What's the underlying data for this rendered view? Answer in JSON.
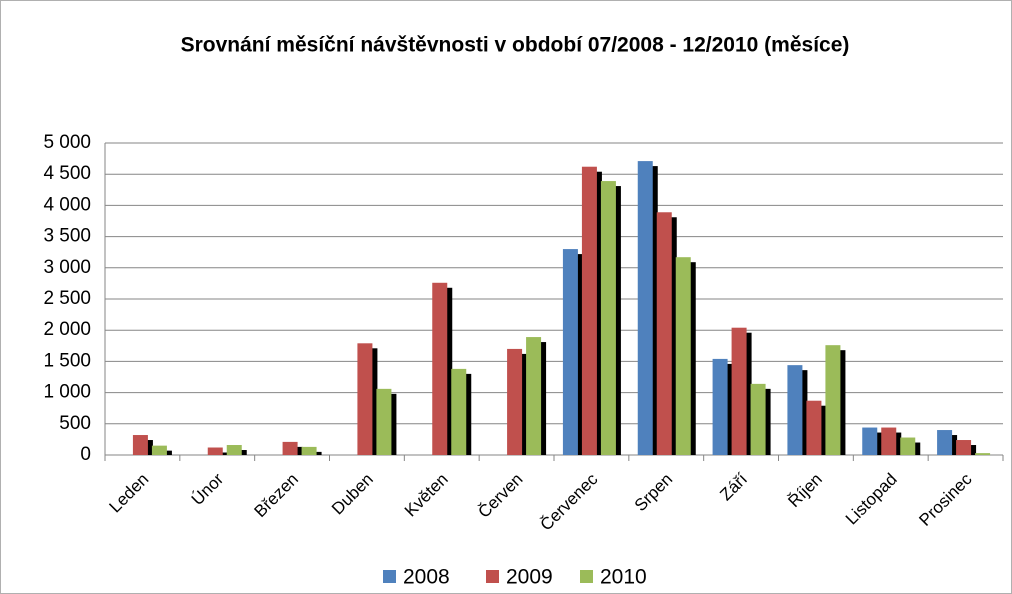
{
  "chart_data": {
    "type": "bar",
    "title": "Srovnání měsíční návštěvnosti v období 07/2008 - 12/2010 (měsíce)",
    "categories": [
      "Leden",
      "Únor",
      "Březen",
      "Duben",
      "Květen",
      "Červen",
      "Červenec",
      "Srpen",
      "Září",
      "Říjen",
      "Listopad",
      "Prosinec"
    ],
    "series": [
      {
        "name": "2008",
        "color": "#4f81bd",
        "values": [
          null,
          null,
          null,
          null,
          null,
          null,
          3300,
          4710,
          1540,
          1440,
          440,
          400
        ]
      },
      {
        "name": "2009",
        "color": "#c0504d",
        "values": [
          320,
          120,
          210,
          1790,
          2760,
          1700,
          4620,
          3890,
          2040,
          870,
          440,
          240
        ]
      },
      {
        "name": "2010",
        "color": "#9bbb59",
        "values": [
          150,
          160,
          130,
          1060,
          1380,
          1890,
          4390,
          3170,
          1140,
          1760,
          280,
          30
        ]
      }
    ],
    "ylim": [
      0,
      5000
    ],
    "yticks": [
      0,
      500,
      {
        "value": 1000,
        "label": "1 000"
      },
      {
        "value": 1500,
        "label": "1 500"
      },
      {
        "value": 2000,
        "label": "2 000"
      },
      {
        "value": 2500,
        "label": "2 500"
      },
      {
        "value": 3000,
        "label": "3 000"
      },
      {
        "value": 3500,
        "label": "3 500"
      },
      {
        "value": 4000,
        "label": "4 000"
      },
      {
        "value": 4500,
        "label": "4 500"
      },
      {
        "value": 5000,
        "label": "5 000"
      }
    ],
    "grid": true,
    "legend": "bottom"
  }
}
